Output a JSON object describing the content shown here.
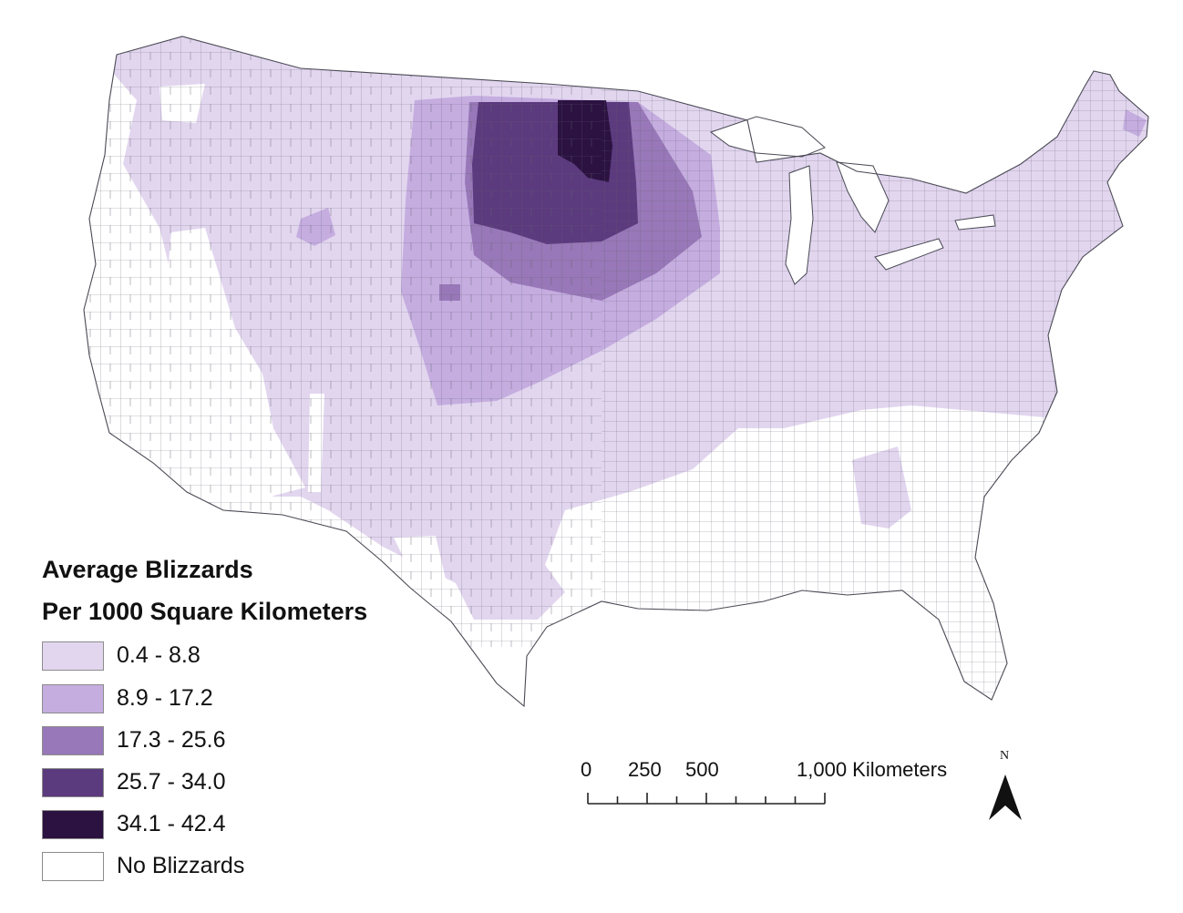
{
  "legend": {
    "title_line1": "Average Blizzards",
    "title_line2": "Per 1000 Square Kilometers",
    "classes": [
      {
        "label": "0.4 - 8.8",
        "color": "#e2d6ef"
      },
      {
        "label": "8.9 - 17.2",
        "color": "#c5ade0"
      },
      {
        "label": "17.3 - 25.6",
        "color": "#9878b8"
      },
      {
        "label": "25.7 - 34.0",
        "color": "#5c3a7e"
      },
      {
        "label": "34.1 - 42.4",
        "color": "#2b1241"
      },
      {
        "label": "No Blizzards",
        "color": "#ffffff"
      }
    ]
  },
  "scale_bar": {
    "labels": [
      "0",
      "250",
      "500",
      "1,000 Kilometers"
    ],
    "ticks_km": [
      0,
      125,
      250,
      375,
      500,
      625,
      750,
      875,
      1000
    ]
  },
  "north_arrow": {
    "label": "N"
  }
}
